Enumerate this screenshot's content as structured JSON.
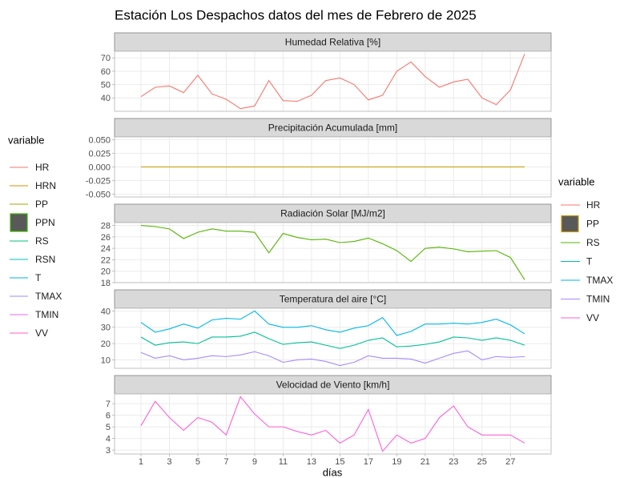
{
  "title": "Estación Los Despachos datos del mes de Febrero de 2025",
  "x_label": "días",
  "legend_title": "variable",
  "legend_left": {
    "title": "variable",
    "entries": [
      {
        "name": "HR",
        "color": "#F8766D"
      },
      {
        "name": "HRN",
        "color": "#D89000"
      },
      {
        "name": "PP",
        "color": "#A3A500"
      },
      {
        "name": "PPN",
        "color": "#39B600",
        "key": "box"
      },
      {
        "name": "RS",
        "color": "#00BF7D"
      },
      {
        "name": "RSN",
        "color": "#00BFC4"
      },
      {
        "name": "T",
        "color": "#00B0F6"
      },
      {
        "name": "TMAX",
        "color": "#9590FF"
      },
      {
        "name": "TMIN",
        "color": "#E76BF3"
      },
      {
        "name": "VV",
        "color": "#FF62BC"
      }
    ]
  },
  "chart_data": [
    {
      "type": "line",
      "title": "Humedad Relativa [%]",
      "x": [
        1,
        2,
        3,
        4,
        5,
        6,
        7,
        8,
        9,
        10,
        11,
        12,
        13,
        14,
        15,
        16,
        17,
        18,
        19,
        20,
        21,
        22,
        23,
        24,
        25,
        26,
        27,
        28
      ],
      "xlim": [
        -0.86,
        29.86
      ],
      "xticks": [
        1,
        3,
        5,
        7,
        9,
        11,
        13,
        15,
        17,
        19,
        21,
        23,
        25,
        27
      ],
      "ylim": [
        30,
        75
      ],
      "yticks": [
        40,
        50,
        60,
        70
      ],
      "series": [
        {
          "name": "HR",
          "color": "#F8766D",
          "values": [
            41,
            48,
            49,
            44,
            57,
            43,
            39,
            32,
            34,
            53,
            38,
            37.5,
            42,
            53,
            55,
            50,
            38.5,
            42,
            60,
            67,
            56,
            48,
            52,
            54,
            40,
            35,
            46,
            73
          ]
        }
      ]
    },
    {
      "type": "line",
      "title": "Precipitación Acumulada [mm]",
      "x": [
        1,
        2,
        3,
        4,
        5,
        6,
        7,
        8,
        9,
        10,
        11,
        12,
        13,
        14,
        15,
        16,
        17,
        18,
        19,
        20,
        21,
        22,
        23,
        24,
        25,
        26,
        27,
        28
      ],
      "xlim": [
        -0.86,
        29.86
      ],
      "xticks": [
        1,
        3,
        5,
        7,
        9,
        11,
        13,
        15,
        17,
        19,
        21,
        23,
        25,
        27
      ],
      "ylim": [
        -0.055,
        0.055
      ],
      "yticks": [
        {
          "value": 0.05,
          "label": "0.050"
        },
        {
          "value": 0.025,
          "label": "0.025"
        },
        {
          "value": 0,
          "label": "0.000"
        },
        {
          "value": -0.025,
          "label": "-0.025"
        },
        {
          "value": -0.05,
          "label": "-0.050"
        }
      ],
      "series": [
        {
          "name": "PP",
          "color": "#C49A00",
          "key": "box",
          "values": [
            0,
            0,
            0,
            0,
            0,
            0,
            0,
            0,
            0,
            0,
            0,
            0,
            0,
            0,
            0,
            0,
            0,
            0,
            0,
            0,
            0,
            0,
            0,
            0,
            0,
            0,
            0,
            0
          ]
        }
      ]
    },
    {
      "type": "line",
      "title": "Radiación Solar [MJ/m2]",
      "x": [
        1,
        2,
        3,
        4,
        5,
        6,
        7,
        8,
        9,
        10,
        11,
        12,
        13,
        14,
        15,
        16,
        17,
        18,
        19,
        20,
        21,
        22,
        23,
        24,
        25,
        26,
        27,
        28
      ],
      "xlim": [
        -0.86,
        29.86
      ],
      "xticks": [
        1,
        3,
        5,
        7,
        9,
        11,
        13,
        15,
        17,
        19,
        21,
        23,
        25,
        27
      ],
      "ylim": [
        18,
        28.5
      ],
      "yticks": [
        18,
        20,
        22,
        24,
        26,
        28
      ],
      "series": [
        {
          "name": "RS",
          "color": "#53B400",
          "values": [
            28,
            27.8,
            27.4,
            25.7,
            26.8,
            27.4,
            27,
            27,
            26.8,
            23.2,
            26.6,
            25.9,
            25.5,
            25.6,
            25,
            25.2,
            25.8,
            24.8,
            23.6,
            21.7,
            24,
            24.2,
            23.9,
            23.4,
            23.5,
            23.6,
            22.4,
            18.5
          ]
        }
      ]
    },
    {
      "type": "line",
      "title": "Temperatura del aire [°C]",
      "x": [
        1,
        2,
        3,
        4,
        5,
        6,
        7,
        8,
        9,
        10,
        11,
        12,
        13,
        14,
        15,
        16,
        17,
        18,
        19,
        20,
        21,
        22,
        23,
        24,
        25,
        26,
        27,
        28
      ],
      "xlim": [
        -0.86,
        29.86
      ],
      "xticks": [
        1,
        3,
        5,
        7,
        9,
        11,
        13,
        15,
        17,
        19,
        21,
        23,
        25,
        27
      ],
      "ylim": [
        4.8,
        41.7
      ],
      "yticks": [
        10,
        20,
        30,
        40
      ],
      "series": [
        {
          "name": "T",
          "color": "#00C094",
          "values": [
            24,
            19,
            20.5,
            21,
            20,
            24,
            24,
            24.5,
            27,
            23,
            19.5,
            20.5,
            21,
            19,
            17,
            19,
            22,
            23.5,
            18,
            18.5,
            19.5,
            21,
            24,
            23.5,
            22,
            23.5,
            22,
            19
          ]
        },
        {
          "name": "TMAX",
          "color": "#00B6EB",
          "values": [
            33,
            27,
            29,
            32,
            29.5,
            34.5,
            35.5,
            35,
            40,
            32,
            30,
            30,
            31,
            28.5,
            27,
            29.5,
            31,
            36,
            25,
            27.5,
            32,
            32,
            32.5,
            32,
            33,
            35,
            31.5,
            26
          ]
        },
        {
          "name": "TMIN",
          "color": "#A58AFF",
          "values": [
            14.5,
            11,
            12.5,
            10,
            11,
            12.5,
            12,
            13,
            15,
            12.5,
            8.5,
            10,
            10.5,
            9,
            6.5,
            8.5,
            12.5,
            11,
            11,
            10.5,
            8,
            11,
            14,
            15.5,
            10,
            12,
            11.5,
            12
          ]
        }
      ]
    },
    {
      "type": "line",
      "title": "Velocidad de Viento [km/h]",
      "x": [
        1,
        2,
        3,
        4,
        5,
        6,
        7,
        8,
        9,
        10,
        11,
        12,
        13,
        14,
        15,
        16,
        17,
        18,
        19,
        20,
        21,
        22,
        23,
        24,
        25,
        26,
        27,
        28
      ],
      "xlim": [
        -0.86,
        29.86
      ],
      "xticks": [
        1,
        3,
        5,
        7,
        9,
        11,
        13,
        15,
        17,
        19,
        21,
        23,
        25,
        27
      ],
      "ylim": [
        2.665,
        7.835
      ],
      "yticks": [
        3,
        4,
        5,
        6,
        7
      ],
      "series": [
        {
          "name": "VV",
          "color": "#FB61D7",
          "values": [
            5.1,
            7.2,
            5.8,
            4.7,
            5.8,
            5.4,
            4.3,
            7.6,
            6.1,
            5,
            5,
            4.6,
            4.3,
            4.7,
            3.6,
            4.3,
            6.5,
            2.9,
            4.3,
            3.6,
            4,
            5.8,
            6.8,
            5,
            4.3,
            4.3,
            4.3,
            3.6
          ]
        }
      ]
    }
  ]
}
